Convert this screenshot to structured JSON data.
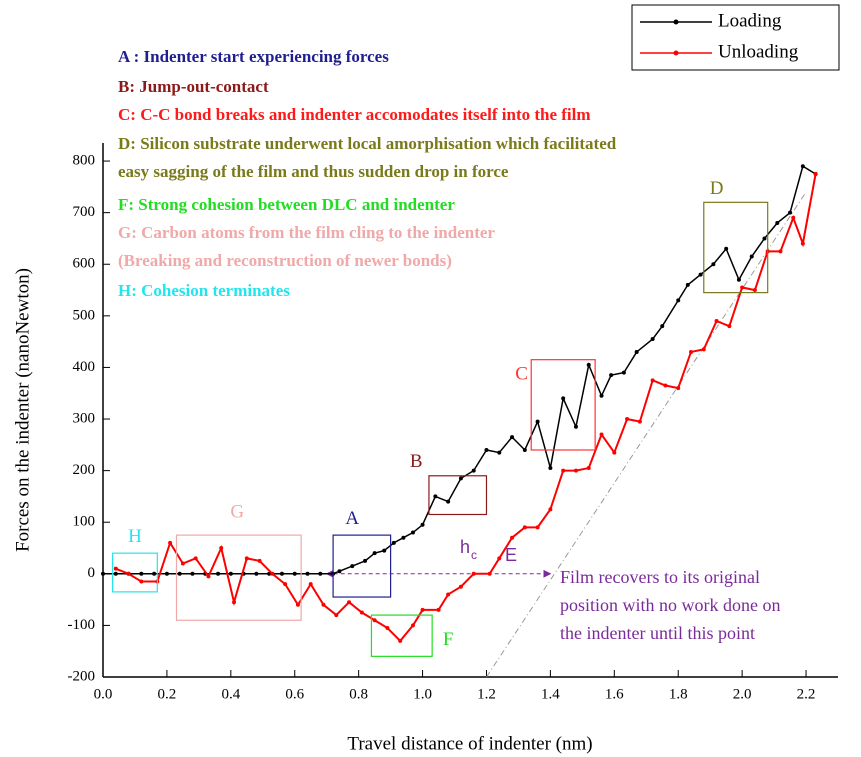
{
  "chart_data": {
    "type": "line",
    "xlabel": "Travel distance of indenter (nm)",
    "ylabel": "Forces on the indenter (nanoNewton)",
    "xlim": [
      0,
      2.3
    ],
    "ylim": [
      -200,
      835
    ],
    "xticks": [
      {
        "value": 0,
        "label": "0.0"
      },
      {
        "value": 0.2,
        "label": "0.2"
      },
      {
        "value": 0.4,
        "label": "0.4"
      },
      {
        "value": 0.6,
        "label": "0.6"
      },
      {
        "value": 0.8,
        "label": "0.8"
      },
      {
        "value": 1,
        "label": "1.0"
      },
      {
        "value": 1.2,
        "label": "1.2"
      },
      {
        "value": 1.4,
        "label": "1.4"
      },
      {
        "value": 1.6,
        "label": "1.6"
      },
      {
        "value": 1.8,
        "label": "1.8"
      },
      {
        "value": 2,
        "label": "2.0"
      },
      {
        "value": 2.2,
        "label": "2.2"
      }
    ],
    "yticks": [
      -200,
      -100,
      0,
      100,
      200,
      300,
      400,
      500,
      600,
      700,
      800
    ],
    "legend": "upper right",
    "series": [
      {
        "name": "Loading",
        "color": "#000000",
        "x": [
          0,
          0.04,
          0.08,
          0.12,
          0.16,
          0.2,
          0.24,
          0.28,
          0.32,
          0.36,
          0.4,
          0.44,
          0.48,
          0.52,
          0.56,
          0.6,
          0.64,
          0.68,
          0.72,
          0.74,
          0.78,
          0.82,
          0.85,
          0.88,
          0.91,
          0.94,
          0.97,
          1.0,
          1.04,
          1.08,
          1.12,
          1.16,
          1.2,
          1.24,
          1.28,
          1.32,
          1.36,
          1.4,
          1.44,
          1.48,
          1.52,
          1.56,
          1.59,
          1.63,
          1.67,
          1.72,
          1.75,
          1.8,
          1.83,
          1.87,
          1.91,
          1.95,
          1.99,
          2.03,
          2.07,
          2.11,
          2.15,
          2.19,
          2.23
        ],
        "values": [
          0,
          0,
          0,
          0,
          0,
          0,
          0,
          0,
          0,
          0,
          0,
          0,
          0,
          0,
          0,
          0,
          0,
          0,
          0,
          5,
          15,
          25,
          40,
          45,
          60,
          70,
          80,
          95,
          150,
          140,
          185,
          200,
          240,
          235,
          265,
          240,
          295,
          205,
          340,
          285,
          405,
          345,
          385,
          390,
          430,
          455,
          480,
          530,
          560,
          580,
          600,
          630,
          570,
          615,
          650,
          680,
          700,
          790,
          775
        ]
      },
      {
        "name": "Unloading",
        "color": "#ff0000",
        "x": [
          0.04,
          0.08,
          0.12,
          0.17,
          0.21,
          0.25,
          0.29,
          0.33,
          0.37,
          0.41,
          0.45,
          0.49,
          0.53,
          0.57,
          0.61,
          0.65,
          0.69,
          0.73,
          0.77,
          0.81,
          0.85,
          0.89,
          0.93,
          0.97,
          1.0,
          1.05,
          1.08,
          1.12,
          1.16,
          1.21,
          1.24,
          1.28,
          1.32,
          1.36,
          1.4,
          1.44,
          1.48,
          1.52,
          1.56,
          1.6,
          1.64,
          1.68,
          1.72,
          1.76,
          1.8,
          1.84,
          1.88,
          1.92,
          1.96,
          2.0,
          2.04,
          2.08,
          2.12,
          2.16,
          2.19,
          2.23
        ],
        "values": [
          10,
          0,
          -15,
          -15,
          60,
          20,
          30,
          -5,
          50,
          -55,
          30,
          25,
          0,
          -20,
          -60,
          -20,
          -60,
          -80,
          -55,
          -75,
          -90,
          -105,
          -130,
          -100,
          -70,
          -70,
          -40,
          -25,
          0,
          0,
          30,
          70,
          90,
          90,
          125,
          200,
          200,
          205,
          270,
          235,
          300,
          295,
          375,
          365,
          360,
          430,
          435,
          490,
          480,
          555,
          550,
          625,
          625,
          690,
          640,
          775
        ]
      }
    ],
    "notes": [
      {
        "text": "A : Indenter start experiencing forces",
        "color": "#1f1f8f"
      },
      {
        "text": "B: Jump-out-contact",
        "color": "#8b1a1a"
      },
      {
        "text": "C: C-C bond breaks and indenter accomodates itself into the film",
        "color": "#ff1a1a"
      },
      {
        "text": "D: Silicon substrate underwent local amorphisation which facilitated",
        "color": "#7a7a1a"
      },
      {
        "text": "easy sagging of the film and thus sudden drop in force",
        "color": "#7a7a1a"
      },
      {
        "text": "F: Strong cohesion between DLC and indenter",
        "color": "#22dd22"
      },
      {
        "text": "G: Carbon atoms from the film cling to the indenter",
        "color": "#f0a8a8"
      },
      {
        "text": "(Breaking and reconstruction of newer bonds)",
        "color": "#f0a8a8"
      },
      {
        "text": "H: Cohesion terminates",
        "color": "#22e5ee"
      }
    ],
    "boxes": [
      {
        "label": "H",
        "color": "#22e5ee"
      },
      {
        "label": "G",
        "color": "#f0a8a8"
      },
      {
        "label": "A",
        "color": "#1f1f8f"
      },
      {
        "label": "B",
        "color": "#8b1a1a"
      },
      {
        "label": "C",
        "color": "#ff3333"
      },
      {
        "label": "D",
        "color": "#7a7a1a"
      },
      {
        "label": "F",
        "color": "#22dd22"
      }
    ],
    "hc": "h",
    "hc_sub": "c",
    "e_label": "E",
    "film_note": [
      "Film recovers to its original",
      "position with no work done on",
      "the indenter until this point"
    ]
  }
}
